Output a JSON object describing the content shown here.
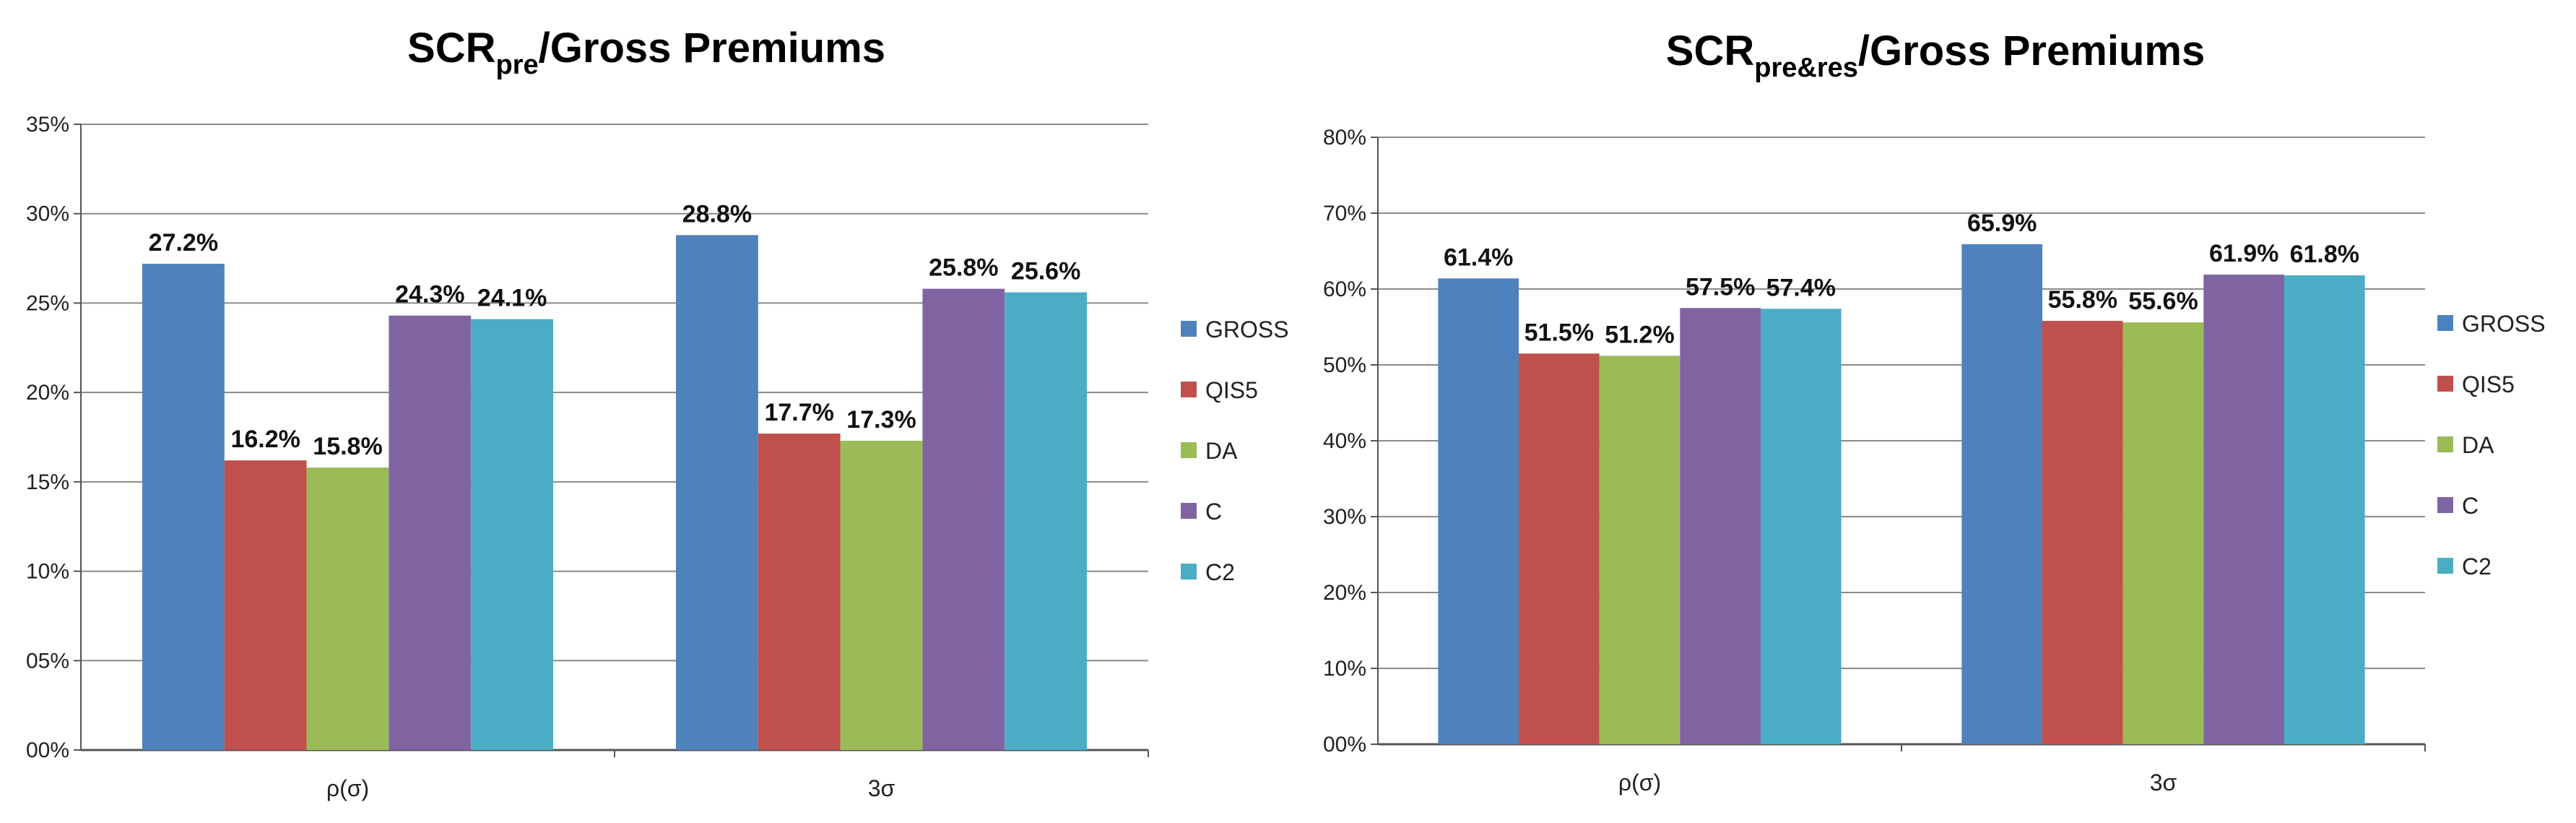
{
  "chart_data": [
    {
      "type": "bar",
      "title": {
        "main": "SCR",
        "sub": "pre",
        "rest": "/Gross Premiums"
      },
      "categories": [
        "ρ(σ)",
        "3σ"
      ],
      "yticks": [
        "00%",
        "05%",
        "10%",
        "15%",
        "20%",
        "25%",
        "30%",
        "35%"
      ],
      "ylim": [
        0,
        35
      ],
      "grid": true,
      "legend_position": "right",
      "series": [
        {
          "name": "GROSS",
          "color": "#4F81BD",
          "values": [
            27.2,
            28.8
          ],
          "labels": [
            "27.2%",
            "28.8%"
          ]
        },
        {
          "name": "QIS5",
          "color": "#C0504D",
          "values": [
            16.2,
            17.7
          ],
          "labels": [
            "16.2%",
            "17.7%"
          ]
        },
        {
          "name": "DA",
          "color": "#9BBB59",
          "values": [
            15.8,
            17.3
          ],
          "labels": [
            "15.8%",
            "17.3%"
          ]
        },
        {
          "name": "C",
          "color": "#8064A2",
          "values": [
            24.3,
            25.8
          ],
          "labels": [
            "24.3%",
            "25.8%"
          ]
        },
        {
          "name": "C2",
          "color": "#4BACC6",
          "values": [
            24.1,
            25.6
          ],
          "labels": [
            "24.1%",
            "25.6%"
          ]
        }
      ]
    },
    {
      "type": "bar",
      "title": {
        "main": "SCR",
        "sub": "pre&res",
        "rest": "/Gross Premiums"
      },
      "categories": [
        "ρ(σ)",
        "3σ"
      ],
      "yticks": [
        "00%",
        "10%",
        "20%",
        "30%",
        "40%",
        "50%",
        "60%",
        "70%",
        "80%"
      ],
      "ylim": [
        0,
        80
      ],
      "grid": true,
      "legend_position": "right",
      "series": [
        {
          "name": "GROSS",
          "color": "#4F81BD",
          "values": [
            61.4,
            65.9
          ],
          "labels": [
            "61.4%",
            "65.9%"
          ]
        },
        {
          "name": "QIS5",
          "color": "#C0504D",
          "values": [
            51.5,
            55.8
          ],
          "labels": [
            "51.5%",
            "55.8%"
          ]
        },
        {
          "name": "DA",
          "color": "#9BBB59",
          "values": [
            51.2,
            55.6
          ],
          "labels": [
            "51.2%",
            "55.6%"
          ]
        },
        {
          "name": "C",
          "color": "#8064A2",
          "values": [
            57.5,
            61.9
          ],
          "labels": [
            "57.5%",
            "61.9%"
          ]
        },
        {
          "name": "C2",
          "color": "#4BACC6",
          "values": [
            57.4,
            61.8
          ],
          "labels": [
            "57.4%",
            "61.8%"
          ]
        }
      ]
    }
  ]
}
